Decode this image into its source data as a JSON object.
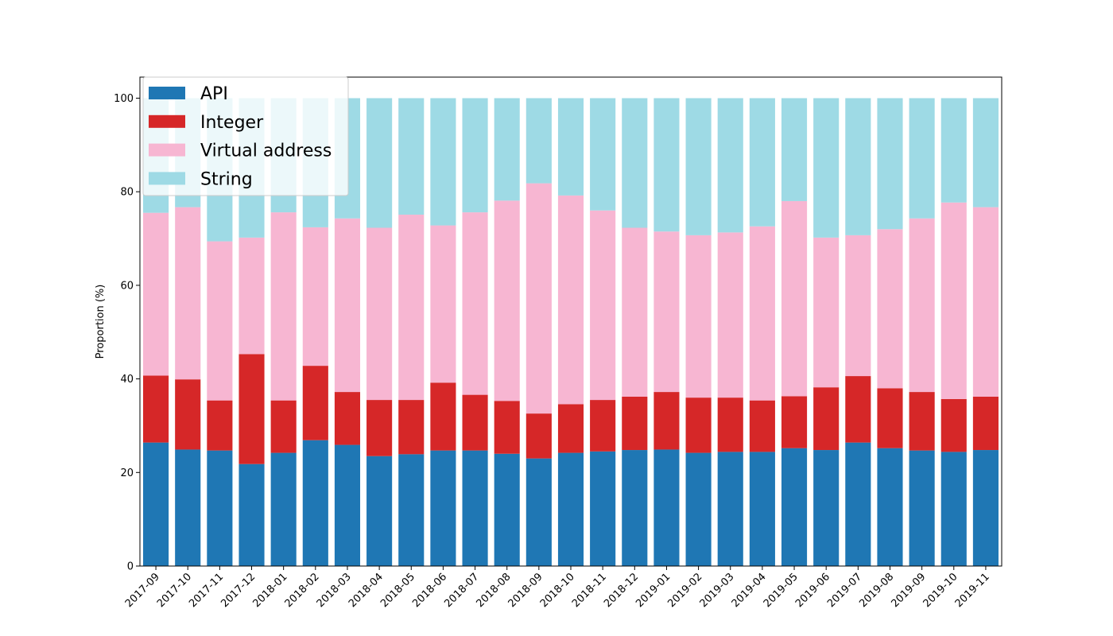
{
  "chart_data": {
    "type": "bar",
    "stacked": true,
    "title": "",
    "xlabel": "",
    "ylabel": "Proportion (%)",
    "ylim": [
      0,
      104.5
    ],
    "yticks": [
      0,
      20,
      40,
      60,
      80,
      100
    ],
    "grid": false,
    "legend_position": "top-left",
    "categories": [
      "2017-09",
      "2017-10",
      "2017-11",
      "2017-12",
      "2018-01",
      "2018-02",
      "2018-03",
      "2018-04",
      "2018-05",
      "2018-06",
      "2018-07",
      "2018-08",
      "2018-09",
      "2018-10",
      "2018-11",
      "2018-12",
      "2019-01",
      "2019-02",
      "2019-03",
      "2019-04",
      "2019-05",
      "2019-06",
      "2019-07",
      "2019-08",
      "2019-09",
      "2019-10",
      "2019-11"
    ],
    "series": [
      {
        "name": "API",
        "color": "#1f77b4",
        "values": [
          26.4,
          24.9,
          24.7,
          21.8,
          24.2,
          26.9,
          25.9,
          23.5,
          23.9,
          24.7,
          24.7,
          24.0,
          23.0,
          24.2,
          24.5,
          24.8,
          24.9,
          24.2,
          24.4,
          24.4,
          25.2,
          24.8,
          26.4,
          25.2,
          24.7,
          24.4,
          24.8
        ]
      },
      {
        "name": "Integer",
        "color": "#d62728",
        "values": [
          14.3,
          15.0,
          10.7,
          23.5,
          11.2,
          15.9,
          11.3,
          12.0,
          11.6,
          14.5,
          11.9,
          11.3,
          9.6,
          10.4,
          11.0,
          11.4,
          12.3,
          11.8,
          11.6,
          11.0,
          11.1,
          13.4,
          14.2,
          12.8,
          12.5,
          11.3,
          11.4
        ]
      },
      {
        "name": "Virtual address",
        "color": "#f7b6d2",
        "values": [
          34.8,
          36.8,
          34.0,
          24.9,
          40.2,
          29.6,
          37.1,
          36.8,
          39.6,
          33.6,
          39.0,
          42.8,
          49.2,
          44.6,
          40.5,
          36.1,
          34.3,
          34.7,
          35.3,
          37.2,
          41.7,
          32.0,
          30.1,
          34.0,
          37.1,
          42.0,
          40.5
        ]
      },
      {
        "name": "String",
        "color": "#9edae5",
        "values": [
          24.5,
          23.3,
          30.6,
          29.8,
          24.4,
          27.6,
          25.7,
          27.7,
          24.9,
          27.2,
          24.4,
          21.9,
          18.2,
          20.8,
          24.0,
          27.7,
          28.5,
          29.3,
          28.7,
          27.4,
          22.0,
          29.8,
          29.3,
          28.0,
          25.7,
          22.3,
          23.3
        ]
      }
    ]
  }
}
